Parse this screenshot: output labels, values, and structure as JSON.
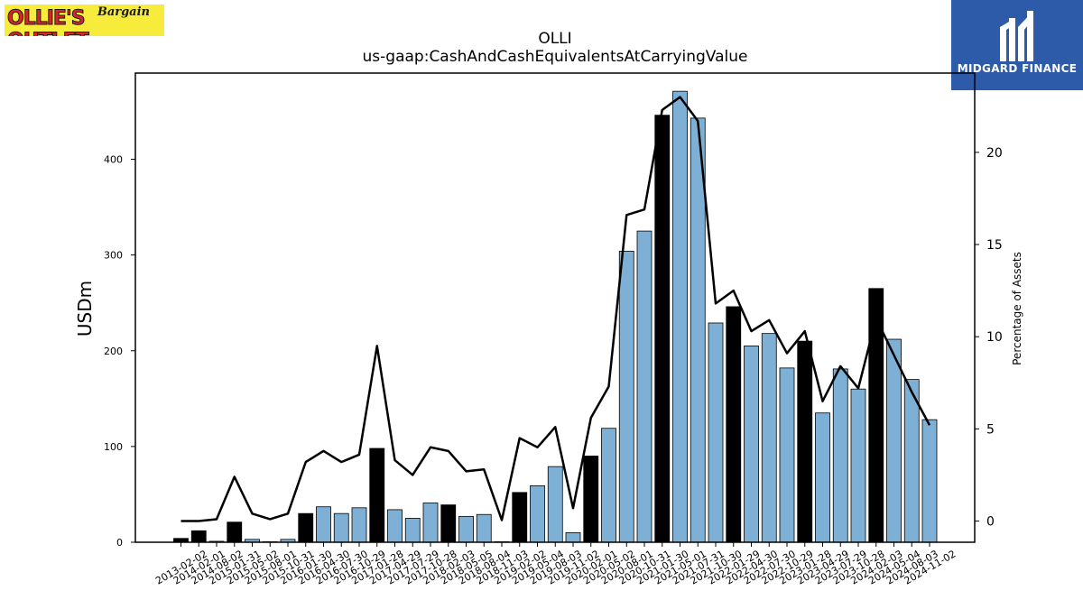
{
  "logos": {
    "left_main": "OLLIE'S OUTLET",
    "left_sub": "Bargain",
    "right_text": "MIDGARD FINANCE"
  },
  "chart_data": {
    "type": "bar",
    "title": "OLLI",
    "subtitle": "us-gaap:CashAndCashEquivalentsAtCarryingValue",
    "ylabel": "USDm",
    "y2label": "Percentage of Assets",
    "ylim": [
      0,
      490
    ],
    "y2lim": [
      -1.15,
      24.3
    ],
    "yticks": [
      0,
      100,
      200,
      300,
      400
    ],
    "y2ticks": [
      0,
      5,
      10,
      15,
      20
    ],
    "colors": {
      "annual_bar": "#000000",
      "quarter_bar": "#7eb0d5",
      "line": "#000000"
    },
    "categories": [
      "2013-02-02",
      "2014-02-01",
      "2014-08-02",
      "2015-01-31",
      "2015-05-02",
      "2015-08-01",
      "2015-10-31",
      "2016-01-30",
      "2016-04-30",
      "2016-07-30",
      "2016-10-29",
      "2017-01-28",
      "2017-04-29",
      "2017-07-29",
      "2017-10-28",
      "2018-02-03",
      "2018-05-05",
      "2018-08-04",
      "2018-11-03",
      "2019-02-02",
      "2019-05-04",
      "2019-08-03",
      "2019-11-02",
      "2020-02-01",
      "2020-05-02",
      "2020-08-01",
      "2020-10-31",
      "2021-01-30",
      "2021-05-01",
      "2021-07-31",
      "2021-10-30",
      "2022-01-29",
      "2022-04-30",
      "2022-07-30",
      "2022-10-29",
      "2023-01-28",
      "2023-04-29",
      "2023-07-29",
      "2023-10-28",
      "2024-02-03",
      "2024-05-04",
      "2024-08-03",
      "2024-11-02"
    ],
    "series": [
      {
        "kind": "bar",
        "values": [
          4,
          12,
          1,
          21,
          3,
          0.5,
          3,
          30,
          37,
          30,
          36,
          98,
          34,
          25,
          41,
          39,
          27,
          29,
          0.5,
          52,
          59,
          79,
          10,
          90,
          119,
          304,
          325,
          446,
          471,
          443,
          229,
          246,
          205,
          218,
          182,
          210,
          135,
          181,
          160,
          265,
          212,
          170,
          128
        ],
        "annual": [
          true,
          true,
          false,
          true,
          false,
          false,
          false,
          true,
          false,
          false,
          false,
          true,
          false,
          false,
          false,
          true,
          false,
          false,
          false,
          true,
          false,
          false,
          false,
          true,
          false,
          false,
          false,
          true,
          false,
          false,
          false,
          true,
          false,
          false,
          false,
          true,
          false,
          false,
          false,
          true,
          false,
          false,
          false
        ]
      },
      {
        "kind": "line",
        "axis": "right",
        "values": [
          0.0,
          0.0,
          0.1,
          2.4,
          0.4,
          0.1,
          0.4,
          3.2,
          3.8,
          3.2,
          3.6,
          9.5,
          3.3,
          2.5,
          4.0,
          3.8,
          2.7,
          2.8,
          0.05,
          4.5,
          4.0,
          5.1,
          0.7,
          5.6,
          7.3,
          16.6,
          16.9,
          22.3,
          23.0,
          21.7,
          11.8,
          12.5,
          10.3,
          10.9,
          9.1,
          10.3,
          6.5,
          8.4,
          7.2,
          11.0,
          9.0,
          7.0,
          5.2
        ]
      }
    ]
  }
}
